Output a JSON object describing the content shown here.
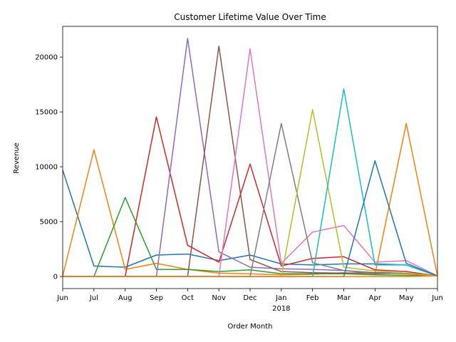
{
  "chart_data": {
    "type": "line",
    "title": "Customer Lifetime Value Over Time",
    "xlabel": "Order Month",
    "ylabel": "Revenue",
    "x_ticks": [
      "Jun",
      "Jul",
      "Aug",
      "Sep",
      "Oct",
      "Nov",
      "Dec",
      "Jan",
      "Feb",
      "Mar",
      "Apr",
      "May",
      "Jun"
    ],
    "x_year_label": "2018",
    "x_year_label_under": "Jan",
    "y_ticks": [
      0,
      5000,
      10000,
      15000,
      20000
    ],
    "ylim": [
      -1100,
      22800
    ],
    "grid": false,
    "legend": "none",
    "series": [
      {
        "color": "#1f77b4",
        "values": [
          9700,
          950,
          850,
          1950,
          2050,
          1450,
          1950,
          1150,
          1050,
          1150,
          1150,
          1050,
          50
        ]
      },
      {
        "color": "#ff7f0e",
        "values": [
          50,
          11550,
          650,
          1200,
          650,
          300,
          250,
          150,
          200,
          350,
          200,
          13950,
          50
        ]
      },
      {
        "color": "#2ca02c",
        "values": [
          0,
          0,
          7200,
          650,
          650,
          450,
          600,
          250,
          250,
          250,
          150,
          100,
          50
        ]
      },
      {
        "color": "#d62728",
        "values": [
          0,
          0,
          0,
          14550,
          2850,
          1300,
          10250,
          950,
          1650,
          1800,
          600,
          450,
          50
        ]
      },
      {
        "color": "#9467bd",
        "values": [
          0,
          0,
          0,
          0,
          21700,
          2250,
          850,
          700,
          650,
          550,
          350,
          300,
          50
        ]
      },
      {
        "color": "#8c564b",
        "values": [
          0,
          0,
          0,
          0,
          0,
          21000,
          1550,
          450,
          350,
          300,
          350,
          250,
          50
        ]
      },
      {
        "color": "#e377c2",
        "values": [
          0,
          0,
          0,
          0,
          0,
          0,
          20750,
          1200,
          4050,
          4650,
          1300,
          1450,
          50
        ]
      },
      {
        "color": "#7f7f7f",
        "values": [
          0,
          0,
          0,
          0,
          0,
          0,
          0,
          13950,
          1250,
          550,
          250,
          300,
          50
        ]
      },
      {
        "color": "#bcbd22",
        "values": [
          0,
          0,
          0,
          0,
          0,
          0,
          0,
          0,
          15200,
          850,
          500,
          300,
          50
        ]
      },
      {
        "color": "#17becf",
        "values": [
          0,
          0,
          0,
          0,
          0,
          0,
          0,
          0,
          0,
          17100,
          1050,
          1050,
          50
        ]
      },
      {
        "color": "#1f77b4",
        "values": [
          0,
          0,
          0,
          0,
          0,
          0,
          0,
          0,
          0,
          0,
          10550,
          1200,
          50
        ]
      },
      {
        "color": "#ff7f0e",
        "values": [
          0,
          0,
          0,
          0,
          0,
          0,
          0,
          0,
          0,
          0,
          0,
          0,
          50
        ]
      }
    ]
  }
}
